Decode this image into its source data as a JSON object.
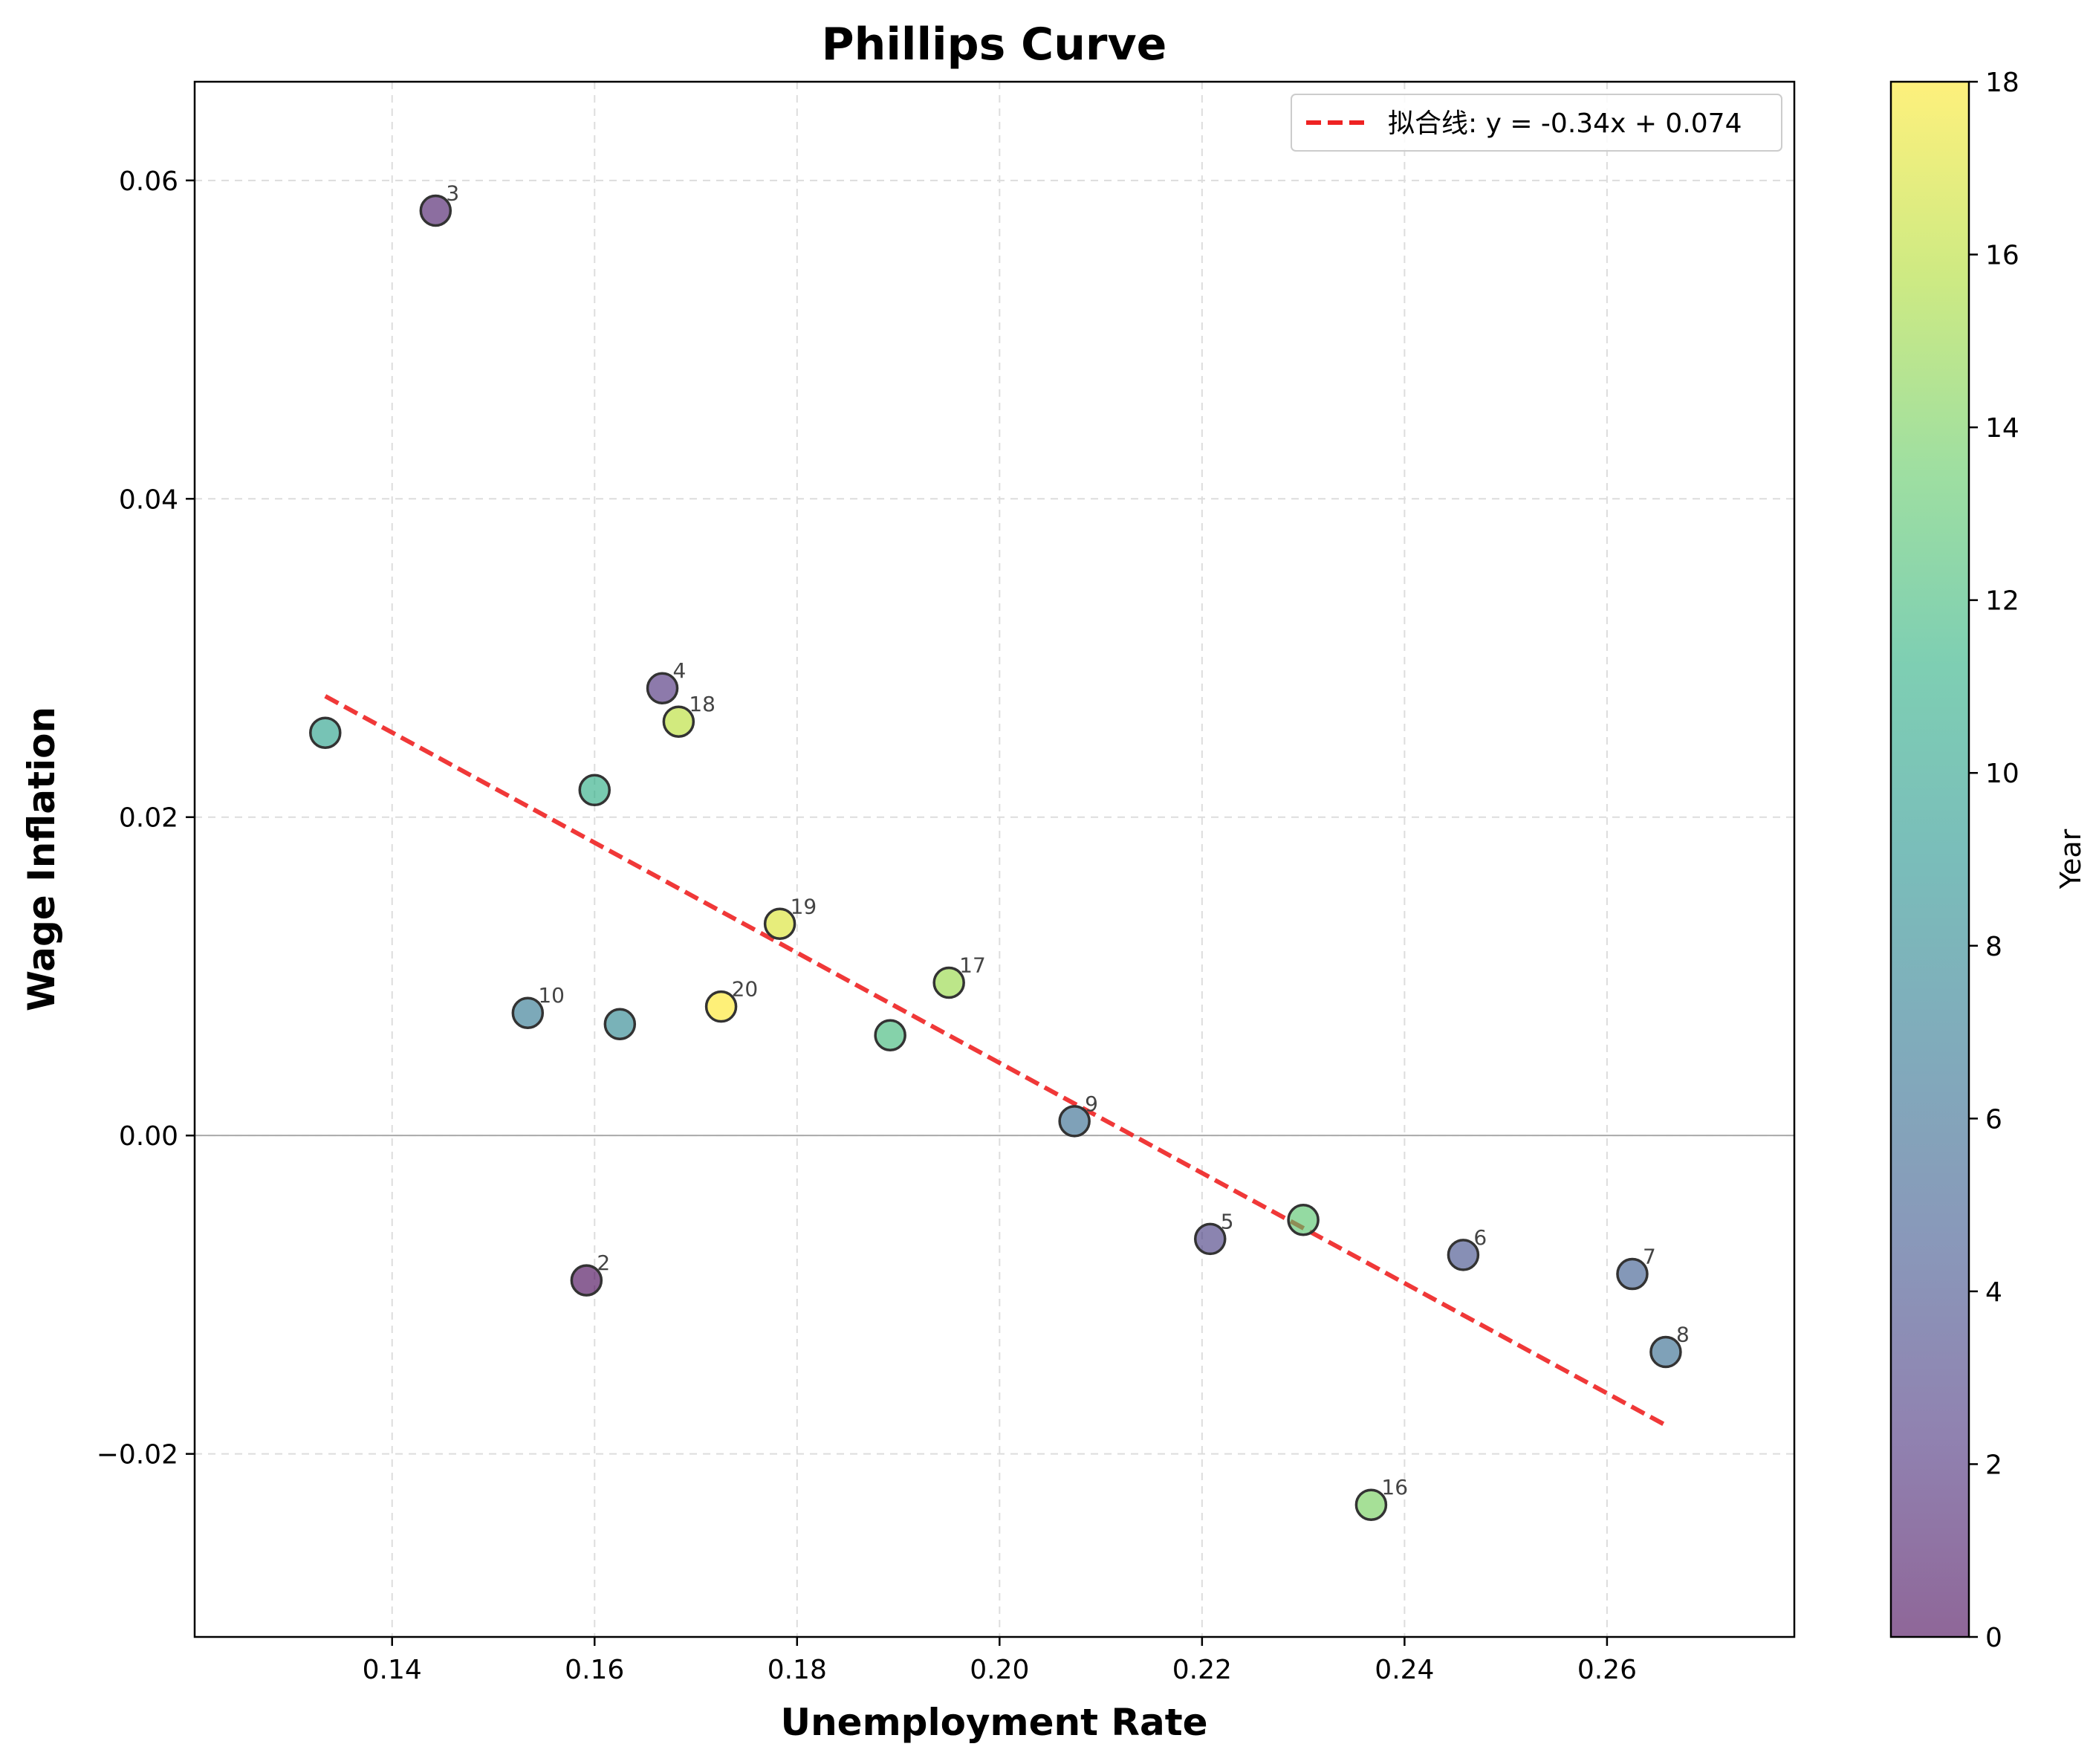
{
  "chart_data": {
    "type": "scatter",
    "title": "Phillips Curve",
    "xlabel": "Unemployment Rate",
    "ylabel": "Wage Inflation",
    "xlim": [
      0.1205,
      0.2785
    ],
    "ylim": [
      -0.0315,
      0.0662
    ],
    "xticks": [
      0.14,
      0.16,
      0.18,
      0.2,
      0.22,
      0.24,
      0.26
    ],
    "xtick_labels": [
      "0.14",
      "0.16",
      "0.18",
      "0.20",
      "0.22",
      "0.24",
      "0.26"
    ],
    "yticks": [
      -0.02,
      0.0,
      0.02,
      0.04,
      0.06
    ],
    "ytick_labels": [
      "−0.02",
      "0.00",
      "0.02",
      "0.04",
      "0.06"
    ],
    "grid": true,
    "colormap": "viridis",
    "colorbar": {
      "label": "Year",
      "range": [
        0,
        18
      ],
      "ticks": [
        0,
        2,
        4,
        6,
        8,
        10,
        12,
        14,
        16,
        18
      ],
      "tick_labels": [
        "0",
        "2",
        "4",
        "6",
        "8",
        "10",
        "12",
        "14",
        "16",
        "18"
      ]
    },
    "points": [
      {
        "x": 0.1592,
        "y": -0.0091,
        "c": 0,
        "label": "2"
      },
      {
        "x": 0.1443,
        "y": 0.0581,
        "c": 1,
        "label": "3"
      },
      {
        "x": 0.1667,
        "y": 0.0281,
        "c": 2,
        "label": "4"
      },
      {
        "x": 0.2208,
        "y": -0.0065,
        "c": 3,
        "label": "5"
      },
      {
        "x": 0.2458,
        "y": -0.0075,
        "c": 4,
        "label": "6"
      },
      {
        "x": 0.2625,
        "y": -0.0087,
        "c": 5,
        "label": "7"
      },
      {
        "x": 0.2658,
        "y": -0.0136,
        "c": 6,
        "label": "8"
      },
      {
        "x": 0.2074,
        "y": 0.0009,
        "c": 6,
        "label": "9"
      },
      {
        "x": 0.1534,
        "y": 0.0077,
        "c": 7,
        "label": "10"
      },
      {
        "x": 0.1625,
        "y": 0.007,
        "c": 8,
        "label": ""
      },
      {
        "x": 0.1334,
        "y": 0.0253,
        "c": 10,
        "label": ""
      },
      {
        "x": 0.16,
        "y": 0.0217,
        "c": 11,
        "label": ""
      },
      {
        "x": 0.1892,
        "y": 0.0063,
        "c": 12,
        "label": ""
      },
      {
        "x": 0.23,
        "y": -0.0053,
        "c": 13,
        "label": ""
      },
      {
        "x": 0.2367,
        "y": -0.0232,
        "c": 14,
        "label": "16"
      },
      {
        "x": 0.195,
        "y": 0.0096,
        "c": 15,
        "label": "17"
      },
      {
        "x": 0.1683,
        "y": 0.026,
        "c": 16,
        "label": "18"
      },
      {
        "x": 0.1783,
        "y": 0.0133,
        "c": 17,
        "label": "19"
      },
      {
        "x": 0.1725,
        "y": 0.0081,
        "c": 18,
        "label": "20"
      }
    ],
    "fit_line": {
      "x": [
        0.1334,
        0.2658
      ],
      "y": [
        0.0276,
        -0.0182
      ],
      "color": "#ee2222",
      "label": "拟合线: y = -0.34x + 0.074"
    },
    "legend": {
      "position": "top-right"
    },
    "colors": {
      "edge": "#333333",
      "zero_line": "#aaaaaa",
      "grid": "#dddddd"
    }
  }
}
